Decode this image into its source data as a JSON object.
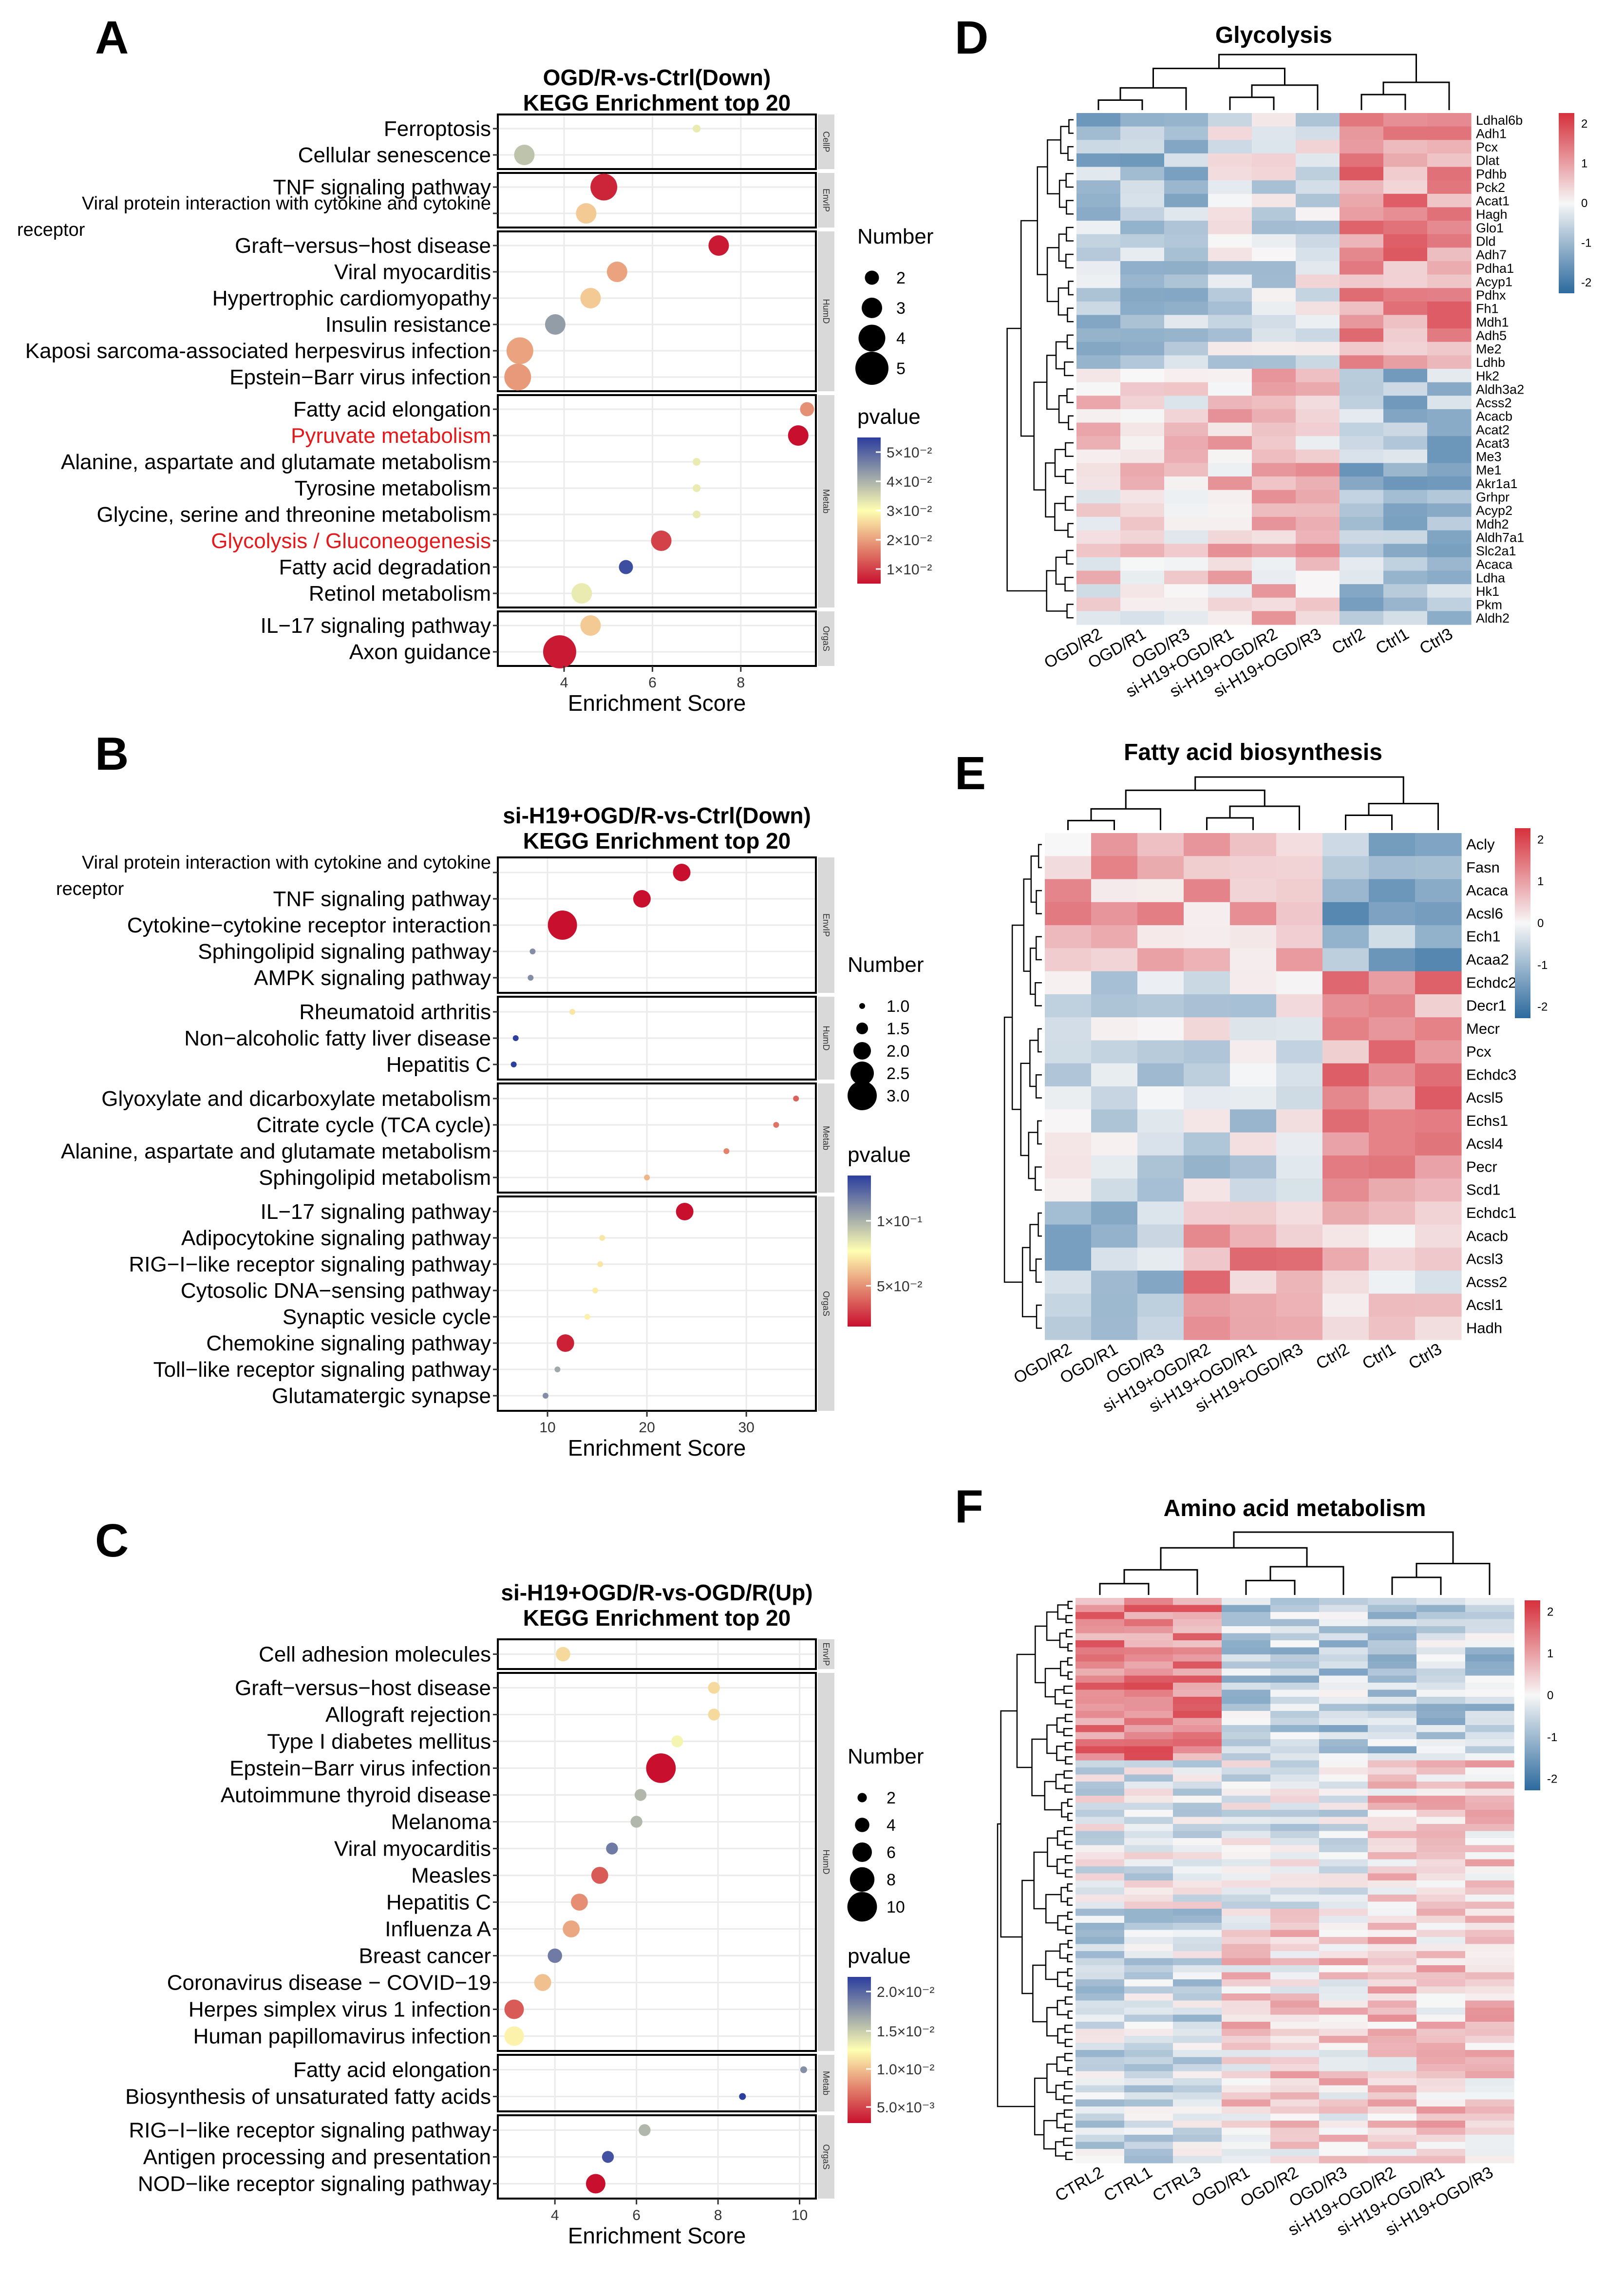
{
  "chart_data": [
    {
      "panel": "A",
      "type": "scatter",
      "title": "OGD/R-vs-Ctrl(Down)",
      "subtitle": "KEGG Enrichment top 20",
      "xlabel": "Enrichment Score",
      "xlim": [
        2.5,
        9.7
      ],
      "xticks": [
        4,
        6,
        8
      ],
      "size_legend_title": "Number",
      "size_legend": [
        2,
        3,
        4,
        5
      ],
      "pvalue_title": "pvalue",
      "pvalue_ticks": [
        "5×10⁻²",
        "4×10⁻²",
        "3×10⁻²",
        "2×10⁻²",
        "1×10⁻²"
      ],
      "groups": [
        {
          "strip": "CellP",
          "terms": [
            {
              "name": "Ferroptosis",
              "x": 7.0,
              "count": 1,
              "p": 0.03
            },
            {
              "name": "Cellular senescence",
              "x": 3.1,
              "count": 3,
              "p": 0.035
            }
          ]
        },
        {
          "strip": "EnvIP",
          "terms": [
            {
              "name": "TNF signaling pathway",
              "x": 4.9,
              "count": 4,
              "p": 0.005
            },
            {
              "name": "Viral protein interaction with cytokine and cytokine receptor",
              "label_lines": [
                "Viral protein interaction with cytokine and cytokine",
                "receptor"
              ],
              "x": 4.5,
              "count": 3,
              "p": 0.022
            }
          ]
        },
        {
          "strip": "HumD",
          "terms": [
            {
              "name": "Graft−versus−host disease",
              "x": 7.5,
              "count": 3,
              "p": 0.004
            },
            {
              "name": "Viral myocarditis",
              "x": 5.2,
              "count": 3,
              "p": 0.018
            },
            {
              "name": "Hypertrophic cardiomyopathy",
              "x": 4.6,
              "count": 3,
              "p": 0.022
            },
            {
              "name": "Insulin resistance",
              "x": 3.8,
              "count": 3,
              "p": 0.04
            },
            {
              "name": "Kaposi sarcoma-associated herpesvirus infection",
              "x": 3.0,
              "count": 4,
              "p": 0.018
            },
            {
              "name": "Epstein−Barr virus infection",
              "x": 2.95,
              "count": 4,
              "p": 0.017
            }
          ]
        },
        {
          "strip": "Metab",
          "terms": [
            {
              "name": "Fatty acid elongation",
              "x": 9.5,
              "count": 2,
              "p": 0.016
            },
            {
              "name": "Pyruvate metabolism",
              "x": 9.3,
              "count": 3,
              "p": 0.003,
              "highlight": true
            },
            {
              "name": "Alanine, aspartate and glutamate metabolism",
              "x": 7.0,
              "count": 1,
              "p": 0.03
            },
            {
              "name": "Tyrosine metabolism",
              "x": 7.0,
              "count": 1,
              "p": 0.03
            },
            {
              "name": "Glycine, serine and threonine metabolism",
              "x": 7.0,
              "count": 1,
              "p": 0.03
            },
            {
              "name": "Glycolysis / Gluconeogenesis",
              "x": 6.2,
              "count": 3,
              "p": 0.008,
              "highlight": true
            },
            {
              "name": "Fatty acid degradation",
              "x": 5.4,
              "count": 2,
              "p": 0.05
            },
            {
              "name": "Retinol metabolism",
              "x": 4.4,
              "count": 3,
              "p": 0.03
            }
          ]
        },
        {
          "strip": "OrgaS",
          "terms": [
            {
              "name": "IL−17 signaling pathway",
              "x": 4.6,
              "count": 3,
              "p": 0.022
            },
            {
              "name": "Axon guidance",
              "x": 3.9,
              "count": 5,
              "p": 0.004
            }
          ]
        }
      ]
    },
    {
      "panel": "B",
      "type": "scatter",
      "title": "si-H19+OGD/R-vs-Ctrl(Down)",
      "subtitle": "KEGG Enrichment top 20",
      "xlabel": "Enrichment Score",
      "xlim": [
        5,
        37
      ],
      "xticks": [
        10,
        20,
        30
      ],
      "size_legend_title": "Number",
      "size_legend": [
        1.0,
        1.5,
        2.0,
        2.5,
        3.0
      ],
      "pvalue_title": "pvalue",
      "pvalue_ticks": [
        "1×10⁻¹",
        "5×10⁻²"
      ],
      "groups": [
        {
          "strip": "EnvIP",
          "terms": [
            {
              "name": "Viral protein interaction with cytokine and cytokine receptor",
              "label_lines": [
                "Viral protein interaction with cytokine and cytokine",
                "receptor"
              ],
              "x": 23.5,
              "count": 2,
              "p": 0.005
            },
            {
              "name": "TNF signaling pathway",
              "x": 19.5,
              "count": 2,
              "p": 0.005
            },
            {
              "name": "Cytokine−cytokine receptor interaction",
              "x": 11.5,
              "count": 3,
              "p": 0.005
            },
            {
              "name": "Sphingolipid signaling pathway",
              "x": 8.5,
              "count": 1,
              "p": 0.12
            },
            {
              "name": "AMPK signaling pathway",
              "x": 8.3,
              "count": 1,
              "p": 0.12
            }
          ]
        },
        {
          "strip": "HumD",
          "terms": [
            {
              "name": "Rheumatoid arthritis",
              "x": 12.5,
              "count": 1,
              "p": 0.07
            },
            {
              "name": "Non−alcoholic fatty liver disease",
              "x": 6.8,
              "count": 1,
              "p": 0.15
            },
            {
              "name": "Hepatitis C",
              "x": 6.6,
              "count": 1,
              "p": 0.15
            }
          ]
        },
        {
          "strip": "Metab",
          "terms": [
            {
              "name": "Glyoxylate and dicarboxylate metabolism",
              "x": 35.0,
              "count": 1,
              "p": 0.03
            },
            {
              "name": "Citrate cycle (TCA cycle)",
              "x": 33.0,
              "count": 1,
              "p": 0.035
            },
            {
              "name": "Alanine, aspartate and glutamate metabolism",
              "x": 28.0,
              "count": 1,
              "p": 0.04
            },
            {
              "name": "Sphingolipid metabolism",
              "x": 20.0,
              "count": 1,
              "p": 0.055
            }
          ]
        },
        {
          "strip": "OrgaS",
          "terms": [
            {
              "name": "IL−17 signaling pathway",
              "x": 23.8,
              "count": 2,
              "p": 0.005
            },
            {
              "name": "Adipocytokine signaling pathway",
              "x": 15.5,
              "count": 1,
              "p": 0.07
            },
            {
              "name": "RIG−I−like receptor signaling pathway",
              "x": 15.3,
              "count": 1,
              "p": 0.07
            },
            {
              "name": "Cytosolic DNA−sensing pathway",
              "x": 14.8,
              "count": 1,
              "p": 0.072
            },
            {
              "name": "Synaptic vesicle cycle",
              "x": 14.0,
              "count": 1,
              "p": 0.073
            },
            {
              "name": "Chemokine signaling pathway",
              "x": 11.8,
              "count": 2,
              "p": 0.01
            },
            {
              "name": "Toll−like receptor signaling pathway",
              "x": 11.0,
              "count": 1,
              "p": 0.11
            },
            {
              "name": "Glutamatergic synapse",
              "x": 9.8,
              "count": 1,
              "p": 0.12
            }
          ]
        }
      ]
    },
    {
      "panel": "C",
      "type": "scatter",
      "title": "si-H19+OGD/R-vs-OGD/R(Up)",
      "subtitle": "KEGG Enrichment top 20",
      "xlabel": "Enrichment Score",
      "xlim": [
        2.6,
        10.4
      ],
      "xticks": [
        4,
        6,
        8,
        10
      ],
      "size_legend_title": "Number",
      "size_legend": [
        2,
        4,
        6,
        8,
        10
      ],
      "pvalue_title": "pvalue",
      "pvalue_ticks": [
        "2.0×10⁻²",
        "1.5×10⁻²",
        "1.0×10⁻²",
        "5.0×10⁻³"
      ],
      "groups": [
        {
          "strip": "EnvIP",
          "terms": [
            {
              "name": "Cell adhesion molecules",
              "x": 4.2,
              "count": 4,
              "p": 0.011
            }
          ]
        },
        {
          "strip": "HumD",
          "terms": [
            {
              "name": "Graft−versus−host disease",
              "x": 7.9,
              "count": 3,
              "p": 0.011
            },
            {
              "name": "Allograft rejection",
              "x": 7.9,
              "count": 3,
              "p": 0.011
            },
            {
              "name": "Type I diabetes mellitus",
              "x": 7.0,
              "count": 3,
              "p": 0.013
            },
            {
              "name": "Epstein−Barr virus infection",
              "x": 6.6,
              "count": 10,
              "p": 0.003
            },
            {
              "name": "Autoimmune thyroid disease",
              "x": 6.1,
              "count": 3,
              "p": 0.016
            },
            {
              "name": "Melanoma",
              "x": 6.0,
              "count": 3,
              "p": 0.016
            },
            {
              "name": "Viral myocarditis",
              "x": 5.4,
              "count": 3,
              "p": 0.019
            },
            {
              "name": "Measles",
              "x": 5.1,
              "count": 5,
              "p": 0.006
            },
            {
              "name": "Hepatitis C",
              "x": 4.6,
              "count": 5,
              "p": 0.008
            },
            {
              "name": "Influenza A",
              "x": 4.4,
              "count": 5,
              "p": 0.009
            },
            {
              "name": "Breast cancer",
              "x": 4.0,
              "count": 4,
              "p": 0.019
            },
            {
              "name": "Coronavirus disease − COVID−19",
              "x": 3.7,
              "count": 5,
              "p": 0.01
            },
            {
              "name": "Herpes simplex virus 1 infection",
              "x": 3.0,
              "count": 6,
              "p": 0.006
            },
            {
              "name": "Human papillomavirus infection",
              "x": 3.0,
              "count": 6,
              "p": 0.012
            }
          ]
        },
        {
          "strip": "Metab",
          "terms": [
            {
              "name": "Fatty acid elongation",
              "x": 10.1,
              "count": 1,
              "p": 0.018
            },
            {
              "name": "Biosynthesis of unsaturated fatty acids",
              "x": 8.6,
              "count": 1,
              "p": 0.022
            }
          ]
        },
        {
          "strip": "OrgaS",
          "terms": [
            {
              "name": "RIG−I−like receptor signaling pathway",
              "x": 6.2,
              "count": 3,
              "p": 0.016
            },
            {
              "name": "Antigen processing and presentation",
              "x": 5.3,
              "count": 3,
              "p": 0.021
            },
            {
              "name": "NOD−like receptor signaling pathway",
              "x": 5.0,
              "count": 6,
              "p": 0.003
            }
          ]
        }
      ]
    },
    {
      "panel": "D",
      "type": "heatmap",
      "title": "Glycolysis",
      "columns": [
        "OGD/R2",
        "OGD/R1",
        "OGD/R3",
        "si-H19+OGD/R1",
        "si-H19+OGD/R2",
        "si-H19+OGD/R3",
        "Ctrl2",
        "Ctrl1",
        "Ctrl3"
      ],
      "rows": [
        "Ldhal6b",
        "Adh1",
        "Pcx",
        "Dlat",
        "Pdhb",
        "Pck2",
        "Acat1",
        "Hagh",
        "Glo1",
        "Dld",
        "Adh7",
        "Pdha1",
        "Acyp1",
        "Pdhx",
        "Fh1",
        "Mdh1",
        "Adh5",
        "Me2",
        "Ldhb",
        "Hk2",
        "Aldh3a2",
        "Acss2",
        "Acacb",
        "Acat2",
        "Acat3",
        "Me3",
        "Me1",
        "Akr1a1",
        "Grhpr",
        "Acyp2",
        "Mdh2",
        "Aldh7a1",
        "Slc2a1",
        "Acaca",
        "Ldha",
        "Hk1",
        "Pkm",
        "Aldh2"
      ],
      "color_scale": [
        -2,
        -1,
        0,
        1,
        2
      ]
    },
    {
      "panel": "E",
      "type": "heatmap",
      "title": "Fatty acid biosynthesis",
      "columns": [
        "OGD/R2",
        "OGD/R1",
        "OGD/R3",
        "si-H19+OGD/R2",
        "si-H19+OGD/R1",
        "si-H19+OGD/R3",
        "Ctrl2",
        "Ctrl1",
        "Ctrl3"
      ],
      "rows": [
        "Acly",
        "Fasn",
        "Acaca",
        "Acsl6",
        "Ech1",
        "Acaa2",
        "Echdc2",
        "Decr1",
        "Mecr",
        "Pcx",
        "Echdc3",
        "Acsl5",
        "Echs1",
        "Acsl4",
        "Pecr",
        "Scd1",
        "Echdc1",
        "Acacb",
        "Acsl3",
        "Acss2",
        "Acsl1",
        "Hadh"
      ],
      "color_scale": [
        -2,
        -1,
        0,
        1,
        2
      ]
    },
    {
      "panel": "F",
      "type": "heatmap",
      "title": "Amino acid metabolism",
      "columns": [
        "CTRL2",
        "CTRL1",
        "CTRL3",
        "OGD/R1",
        "OGD/R2",
        "OGD/R3",
        "si-H19+OGD/R2",
        "si-H19+OGD/R1",
        "si-H19+OGD/R3"
      ],
      "row_count": 80,
      "color_scale": [
        -2,
        -1,
        0,
        1,
        2
      ]
    }
  ],
  "panel_labels": [
    "A",
    "B",
    "C",
    "D",
    "E",
    "F"
  ],
  "colors": {
    "low": "#2c6a9e",
    "mid": "#f7f7f7",
    "high": "#d6303b",
    "pval_low": "#c8102e",
    "pval_mid": "#ffffb2",
    "pval_high": "#2c3e9e",
    "highlight_text": "#e31a1c"
  }
}
